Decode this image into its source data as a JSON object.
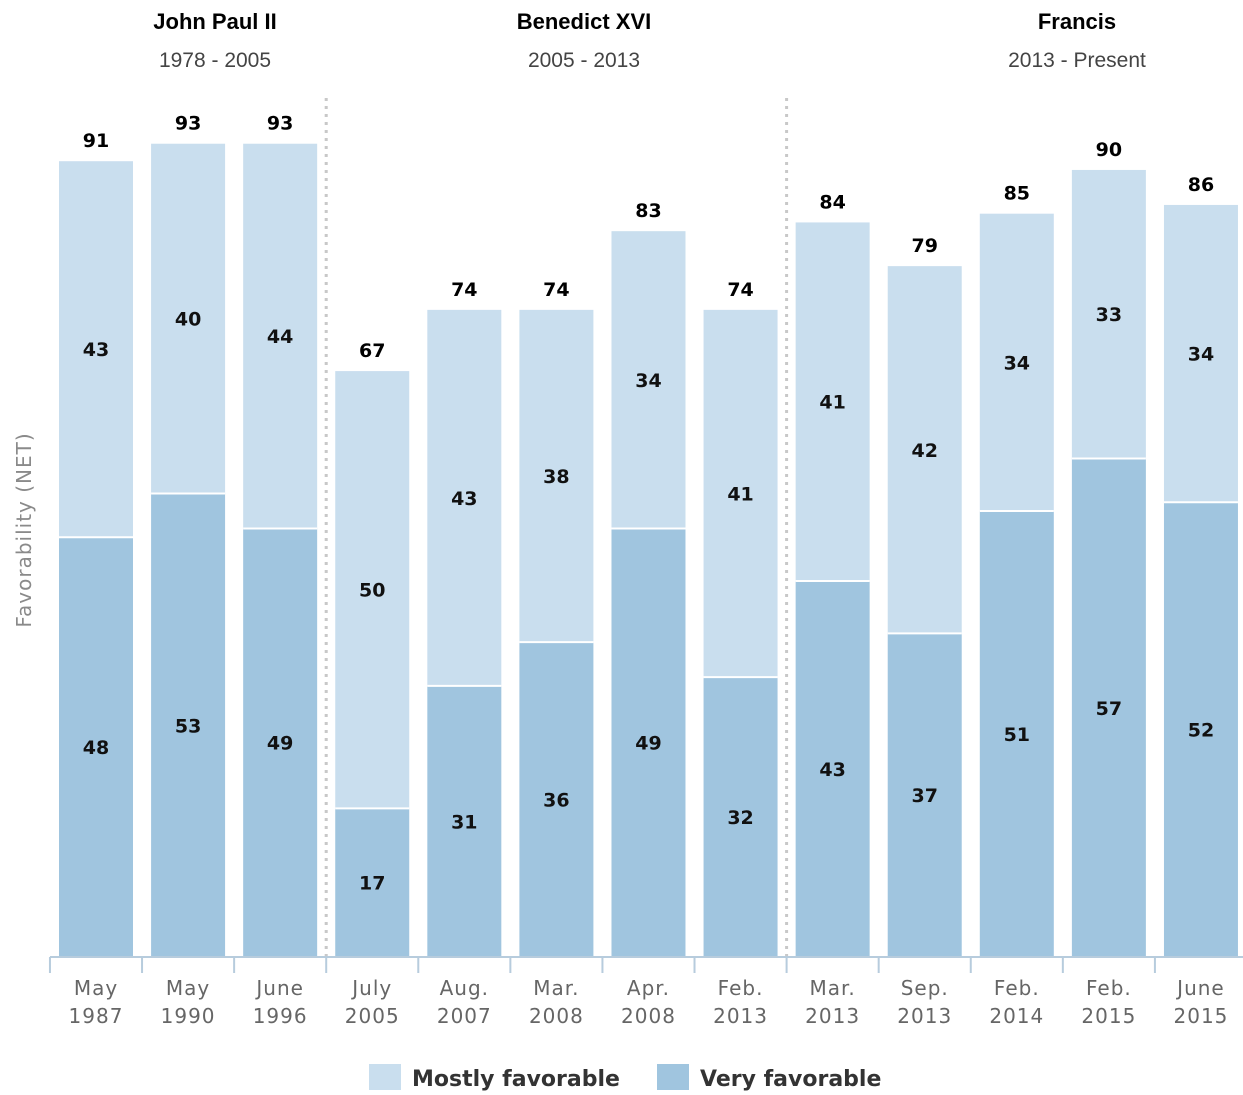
{
  "chart_data": {
    "type": "bar",
    "stacked": true,
    "ylabel": "Favorability (NET)",
    "ylim": [
      0,
      100
    ],
    "grid": false,
    "legend_placement": "bottom",
    "categories": [
      [
        "May",
        "1987"
      ],
      [
        "May",
        "1990"
      ],
      [
        "June",
        "1996"
      ],
      [
        "July",
        "2005"
      ],
      [
        "Aug.",
        "2007"
      ],
      [
        "Mar.",
        "2008"
      ],
      [
        "Apr.",
        "2008"
      ],
      [
        "Feb.",
        "2013"
      ],
      [
        "Mar.",
        "2013"
      ],
      [
        "Sep.",
        "2013"
      ],
      [
        "Feb.",
        "2014"
      ],
      [
        "Feb.",
        "2015"
      ],
      [
        "June",
        "2015"
      ]
    ],
    "series": [
      {
        "name": "Very favorable",
        "color": "#a0c5df",
        "values": [
          48,
          53,
          49,
          17,
          31,
          36,
          49,
          32,
          43,
          37,
          51,
          57,
          52
        ]
      },
      {
        "name": "Mostly favorable",
        "color": "#c9deee",
        "values": [
          43,
          40,
          44,
          50,
          43,
          38,
          34,
          41,
          41,
          42,
          34,
          33,
          34
        ]
      }
    ],
    "totals": [
      91,
      93,
      93,
      67,
      74,
      74,
      83,
      74,
      84,
      79,
      85,
      90,
      86
    ],
    "eras": [
      {
        "name": "John Paul II",
        "years": "1978 - 2005",
        "start_index": 0,
        "end_index": 2
      },
      {
        "name": "Benedict XVI",
        "years": "2005 - 2013",
        "start_index": 3,
        "end_index": 7
      },
      {
        "name": "Francis",
        "years": "2013 - Present",
        "start_index": 8,
        "end_index": 12
      }
    ],
    "legend": [
      {
        "label": "Mostly favorable",
        "color": "#c9deee"
      },
      {
        "label": "Very favorable",
        "color": "#a0c5df"
      }
    ],
    "colors": {
      "axis": "#b7ccdd",
      "divider": "#c8c8c8"
    }
  }
}
